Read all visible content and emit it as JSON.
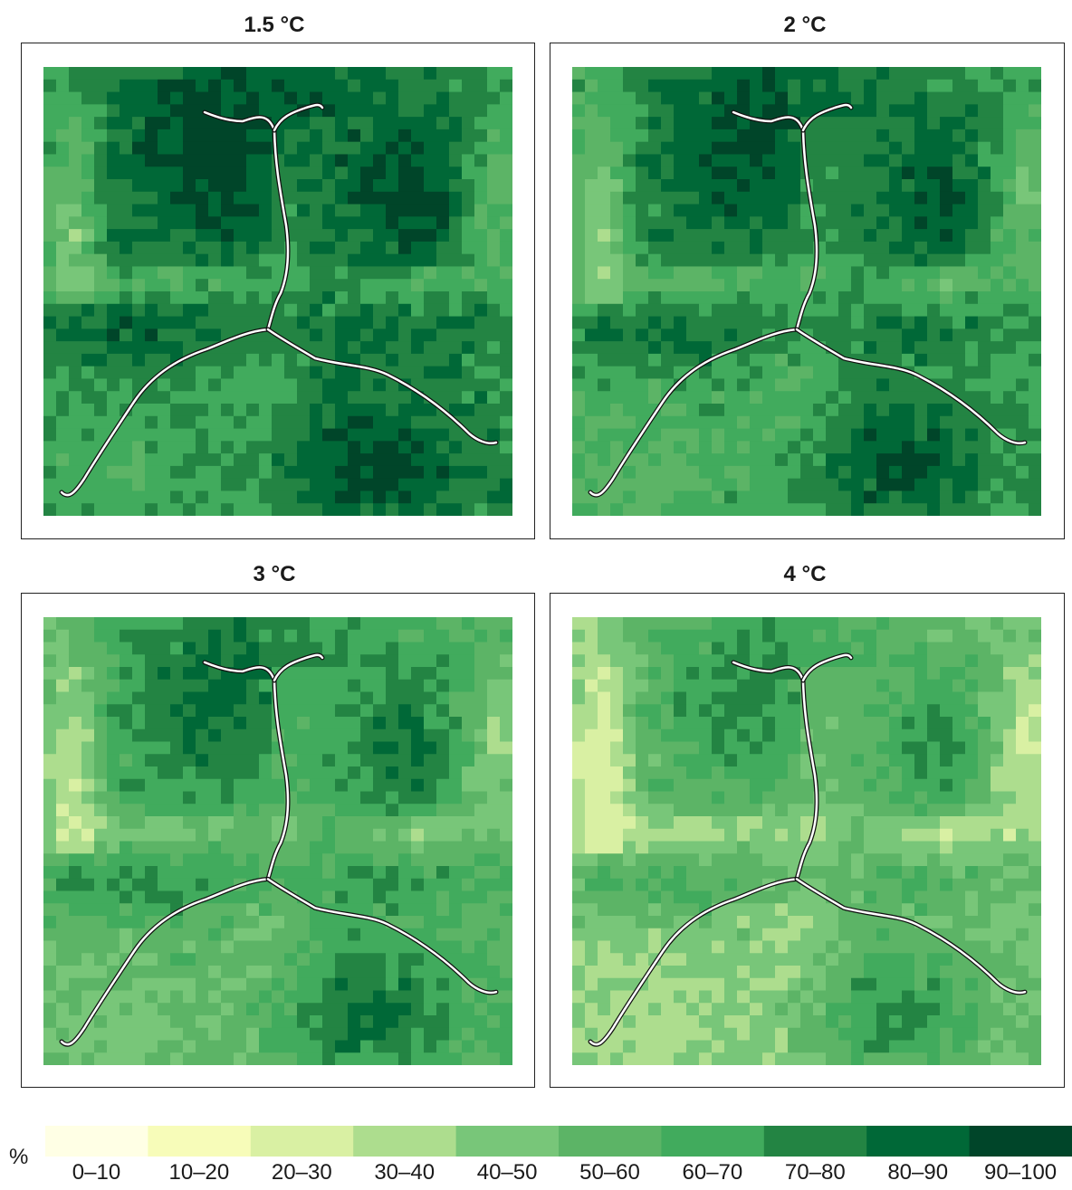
{
  "panels": [
    {
      "title": "1.5 °C",
      "warming_level": 1.5
    },
    {
      "title": "2 °C",
      "warming_level": 2
    },
    {
      "title": "3 °C",
      "warming_level": 3
    },
    {
      "title": "4 °C",
      "warming_level": 4
    }
  ],
  "legend": {
    "unit": "%",
    "classes": [
      {
        "label": "0–10",
        "color": "#ffffe5"
      },
      {
        "label": "10–20",
        "color": "#f7fcb9"
      },
      {
        "label": "20–30",
        "color": "#d9f0a3"
      },
      {
        "label": "30–40",
        "color": "#addd8e"
      },
      {
        "label": "40–50",
        "color": "#78c679"
      },
      {
        "label": "50–60",
        "color": "#5cb466"
      },
      {
        "label": "60–70",
        "color": "#41ab5d"
      },
      {
        "label": "70–80",
        "color": "#238443"
      },
      {
        "label": "80–90",
        "color": "#006837"
      },
      {
        "label": "90–100",
        "color": "#004529"
      }
    ]
  }
}
